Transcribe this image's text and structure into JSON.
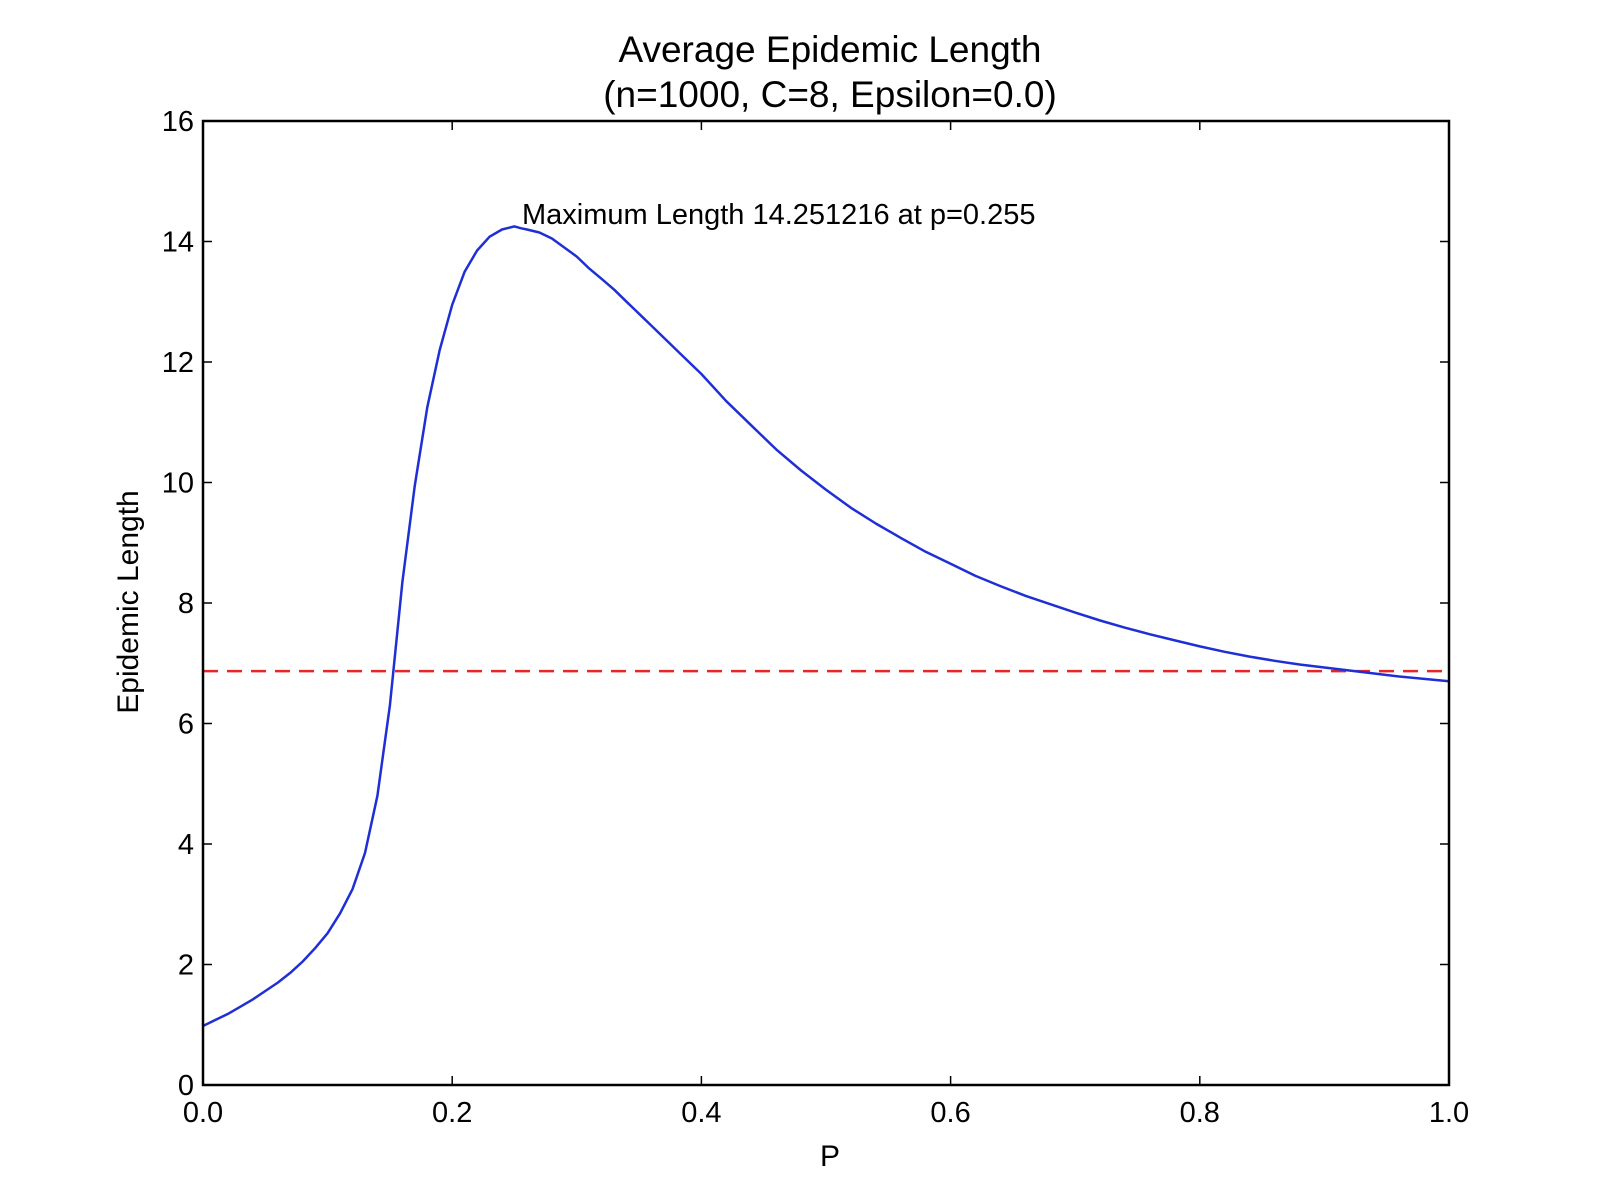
{
  "chart_data": {
    "type": "line",
    "title": "Average Epidemic Length",
    "subtitle": "(n=1000, C=8, Epsilon=0.0)",
    "xlabel": "P",
    "ylabel": "Epidemic Length",
    "xlim": [
      0.0,
      1.0
    ],
    "ylim": [
      0,
      16
    ],
    "x_ticks": [
      0.0,
      0.2,
      0.4,
      0.6,
      0.8,
      1.0
    ],
    "x_tick_labels": [
      "0.0",
      "0.2",
      "0.4",
      "0.6",
      "0.8",
      "1.0"
    ],
    "y_ticks": [
      0,
      2,
      4,
      6,
      8,
      10,
      12,
      14,
      16
    ],
    "y_tick_labels": [
      "0",
      "2",
      "4",
      "6",
      "8",
      "10",
      "12",
      "14",
      "16"
    ],
    "grid": false,
    "annotation": "Maximum Length 14.251216 at p=0.255",
    "reference_line": {
      "style": "dashed",
      "color": "#e8262a",
      "y": 6.87
    },
    "series": [
      {
        "color": "#1f2fd6",
        "x": [
          0.0,
          0.01,
          0.02,
          0.03,
          0.04,
          0.05,
          0.06,
          0.07,
          0.08,
          0.09,
          0.1,
          0.11,
          0.12,
          0.13,
          0.14,
          0.15,
          0.16,
          0.17,
          0.18,
          0.19,
          0.2,
          0.21,
          0.22,
          0.23,
          0.24,
          0.25,
          0.255,
          0.26,
          0.27,
          0.28,
          0.29,
          0.3,
          0.31,
          0.32,
          0.33,
          0.34,
          0.35,
          0.36,
          0.37,
          0.38,
          0.39,
          0.4,
          0.42,
          0.44,
          0.46,
          0.48,
          0.5,
          0.52,
          0.54,
          0.56,
          0.58,
          0.6,
          0.62,
          0.64,
          0.66,
          0.68,
          0.7,
          0.72,
          0.74,
          0.76,
          0.78,
          0.8,
          0.82,
          0.84,
          0.86,
          0.88,
          0.9,
          0.92,
          0.94,
          0.96,
          0.98,
          1.0
        ],
        "y": [
          0.98,
          1.08,
          1.18,
          1.3,
          1.42,
          1.56,
          1.7,
          1.86,
          2.05,
          2.27,
          2.52,
          2.85,
          3.25,
          3.85,
          4.8,
          6.3,
          8.35,
          9.95,
          11.25,
          12.2,
          12.95,
          13.5,
          13.85,
          14.08,
          14.2,
          14.25,
          14.22,
          14.2,
          14.15,
          14.05,
          13.9,
          13.75,
          13.55,
          13.38,
          13.2,
          13.0,
          12.8,
          12.6,
          12.4,
          12.2,
          12.0,
          11.8,
          11.35,
          10.95,
          10.55,
          10.2,
          9.88,
          9.58,
          9.32,
          9.08,
          8.85,
          8.65,
          8.45,
          8.28,
          8.12,
          7.98,
          7.84,
          7.71,
          7.59,
          7.48,
          7.38,
          7.28,
          7.19,
          7.11,
          7.04,
          6.98,
          6.93,
          6.88,
          6.83,
          6.78,
          6.74,
          6.7
        ]
      }
    ]
  }
}
